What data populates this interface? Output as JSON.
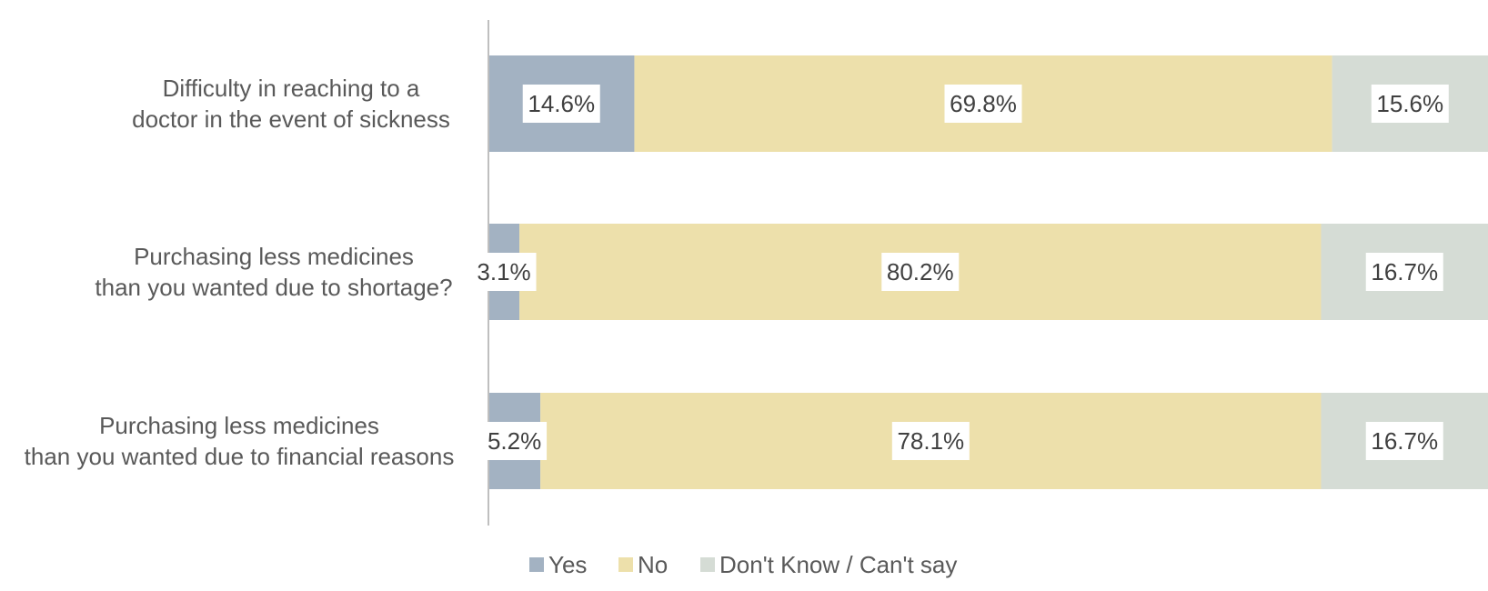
{
  "chart_data": {
    "type": "bar",
    "orientation": "horizontal",
    "stacked": "100%",
    "categories": [
      [
        "Difficulty in reaching to a",
        "doctor in the event of sickness"
      ],
      [
        "Purchasing less medicines",
        "than you wanted due to shortage?"
      ],
      [
        "Purchasing less medicines",
        "than you wanted due to financial reasons"
      ]
    ],
    "series": [
      {
        "name": "Yes",
        "values": [
          14.6,
          3.1,
          5.2
        ],
        "labels": [
          "14.6%",
          "3.1%",
          "5.2%"
        ],
        "color": "#a3b2c2"
      },
      {
        "name": "No",
        "values": [
          69.8,
          80.2,
          78.1
        ],
        "labels": [
          "69.8%",
          "80.2%",
          "78.1%"
        ],
        "color": "#ede0ab"
      },
      {
        "name": "Don't Know / Can't say",
        "values": [
          15.6,
          16.7,
          16.7
        ],
        "labels": [
          "15.6%",
          "16.7%",
          "16.7%"
        ],
        "color": "#d5dcd5"
      }
    ],
    "xlim": [
      0,
      100
    ],
    "grid": false,
    "legend": "bottom"
  }
}
